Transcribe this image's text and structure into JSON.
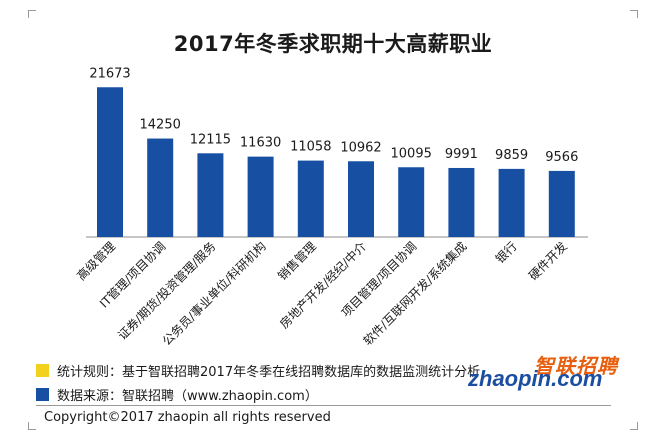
{
  "chart_data": {
    "type": "bar",
    "title": "2017年冬季求职期十大高薪职业",
    "categories": [
      "高级管理",
      "IT管理/项目协调",
      "证券/期货/投资管理/服务",
      "公务员/事业单位/科研机构",
      "销售管理",
      "房地产开发/经纪/中介",
      "项目管理/项目协调",
      "软件/互联网开发/系统集成",
      "银行",
      "硬件开发"
    ],
    "values": [
      21673,
      14250,
      12115,
      11630,
      11058,
      10962,
      10095,
      9991,
      9859,
      9566
    ],
    "value_labels": [
      "21673",
      "14250",
      "12115",
      "11630",
      "11058",
      "10962",
      "10095",
      "9991",
      "9859",
      "9566"
    ],
    "ylim": [
      0,
      22000
    ],
    "xlabel": "",
    "ylabel": "",
    "grid": false,
    "bar_color": "#1750a3"
  },
  "legend": {
    "items": [
      {
        "label": "统计规则：基于智联招聘2017年冬季在线招聘数据库的数据监测统计分析",
        "color": "#f1d11c"
      },
      {
        "label": "数据来源：智联招聘（www.zhaopin.com）",
        "color": "#1750a3"
      }
    ]
  },
  "logo": {
    "cn": "智联招聘",
    "en": "zhaopin.com"
  },
  "footer": {
    "copyright": "Copyright©2017 zhaopin all rights reserved"
  }
}
